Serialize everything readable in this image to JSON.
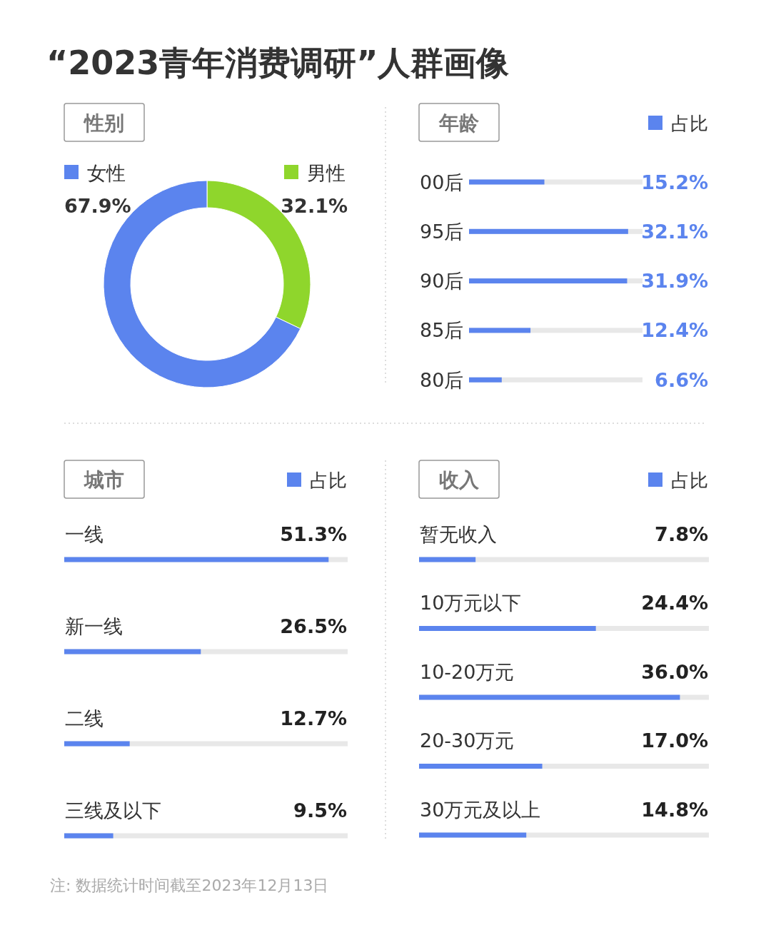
{
  "chart_data": [
    {
      "type": "donut",
      "title": "性别",
      "annotations": [
        "“2023青年消费调研”人群画像"
      ],
      "categories": [
        "女性",
        "男性"
      ],
      "values": [
        67.9,
        32.1
      ],
      "value_labels": [
        "67.9%",
        "32.1%"
      ],
      "colors": [
        "#5b84ee",
        "#8fd62c"
      ],
      "legend": "top"
    },
    {
      "type": "bar",
      "orientation": "horizontal",
      "title": "年龄",
      "categories": [
        "00后",
        "95后",
        "90后",
        "85后",
        "80后"
      ],
      "series": [
        {
          "name": "占比",
          "color": "#5b84ee",
          "values": [
            15.2,
            32.1,
            31.9,
            12.4,
            6.6
          ],
          "value_labels": [
            "15.2%",
            "32.1%",
            "31.9%",
            "12.4%",
            "6.6%"
          ]
        }
      ],
      "xlim": [
        0,
        35
      ],
      "legend": "top right"
    },
    {
      "type": "bar",
      "orientation": "horizontal",
      "title": "城市",
      "categories": [
        "一线",
        "新一线",
        "二线",
        "三线及以下"
      ],
      "series": [
        {
          "name": "占比",
          "color": "#5b84ee",
          "values": [
            51.3,
            26.5,
            12.7,
            9.5
          ],
          "value_labels": [
            "51.3%",
            "26.5%",
            "12.7%",
            "9.5%"
          ]
        }
      ],
      "xlim": [
        0,
        55
      ],
      "legend": "top right"
    },
    {
      "type": "bar",
      "orientation": "horizontal",
      "title": "收入",
      "annotations": [
        "注: 数据统计时间截至2023年12月13日"
      ],
      "categories": [
        "暂无收入",
        "10万元以下",
        "10-20万元",
        "20-30万元",
        "30万元及以上"
      ],
      "series": [
        {
          "name": "占比",
          "color": "#5b84ee",
          "values": [
            7.8,
            24.4,
            36.0,
            17.0,
            14.8
          ],
          "value_labels": [
            "7.8%",
            "24.4%",
            "36.0%",
            "17.0%",
            "14.8%"
          ]
        }
      ],
      "xlim": [
        0,
        40
      ],
      "legend": "top right"
    }
  ]
}
